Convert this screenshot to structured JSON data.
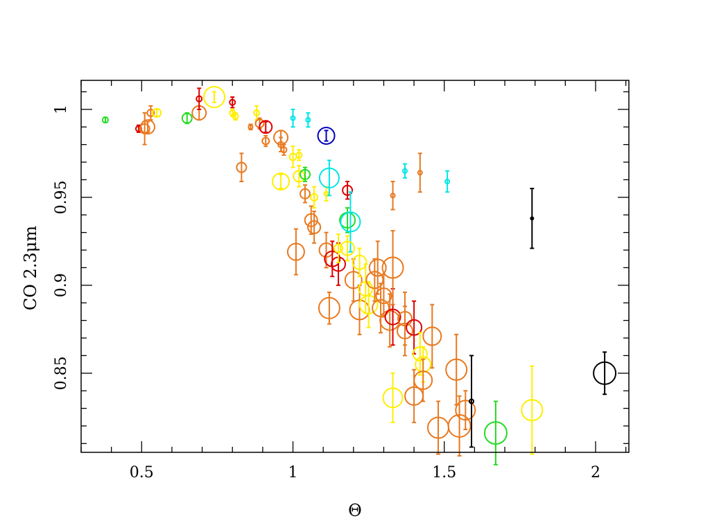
{
  "chart_data": {
    "type": "scatter",
    "title": "",
    "xlabel": "Θ",
    "ylabel": "CO 2.3μm",
    "xlim": [
      0.3,
      2.11
    ],
    "ylim": [
      0.805,
      1.0165
    ],
    "xticks": [
      {
        "value": 0.5,
        "label": "0.5"
      },
      {
        "value": 1,
        "label": "1"
      },
      {
        "value": 1.5,
        "label": "1.5"
      },
      {
        "value": 2,
        "label": "2"
      }
    ],
    "yticks": [
      {
        "value": 0.85,
        "label": "0.85"
      },
      {
        "value": 0.9,
        "label": "0.9"
      },
      {
        "value": 0.95,
        "label": "0.95"
      },
      {
        "value": 1,
        "label": "1"
      }
    ],
    "x_minor_step": 0.1,
    "y_minor_step": 0.01,
    "grid": false,
    "legend": "none",
    "colors": {
      "red": "#dd0000",
      "orange": "#e8781e",
      "yellow": "#ffee00",
      "green": "#22dd22",
      "cyan": "#00e5e5",
      "blue": "#0000bb",
      "black": "#000000"
    },
    "points": [
      {
        "x": 0.38,
        "y": 0.994,
        "err": 0.0015,
        "size": 4,
        "color": "green"
      },
      {
        "x": 0.49,
        "y": 0.989,
        "err": 0.002,
        "size": 4,
        "color": "red"
      },
      {
        "x": 0.51,
        "y": 0.989,
        "err": 0.009,
        "size": 7,
        "color": "orange"
      },
      {
        "x": 0.52,
        "y": 0.99,
        "err": 0.003,
        "size": 10,
        "color": "orange"
      },
      {
        "x": 0.53,
        "y": 0.998,
        "err": 0.004,
        "size": 5,
        "color": "orange"
      },
      {
        "x": 0.55,
        "y": 0.998,
        "err": 0.002,
        "size": 6,
        "color": "yellow"
      },
      {
        "x": 0.65,
        "y": 0.995,
        "err": 0.003,
        "size": 7,
        "color": "green"
      },
      {
        "x": 0.69,
        "y": 0.998,
        "err": 0.004,
        "size": 10,
        "color": "orange"
      },
      {
        "x": 0.69,
        "y": 1.006,
        "err": 0.006,
        "size": 4,
        "color": "red"
      },
      {
        "x": 0.74,
        "y": 1.007,
        "err": 0.003,
        "size": 15,
        "color": "yellow"
      },
      {
        "x": 0.8,
        "y": 1.004,
        "err": 0.003,
        "size": 4,
        "color": "red"
      },
      {
        "x": 0.8,
        "y": 0.998,
        "err": 0.002,
        "size": 4,
        "color": "yellow"
      },
      {
        "x": 0.81,
        "y": 0.996,
        "err": 0.002,
        "size": 4,
        "color": "yellow"
      },
      {
        "x": 0.83,
        "y": 0.967,
        "err": 0.008,
        "size": 7,
        "color": "orange"
      },
      {
        "x": 0.86,
        "y": 0.99,
        "err": 0.0015,
        "size": 3,
        "color": "orange"
      },
      {
        "x": 0.88,
        "y": 0.998,
        "err": 0.004,
        "size": 4,
        "color": "yellow"
      },
      {
        "x": 0.89,
        "y": 0.992,
        "err": 0.003,
        "size": 6,
        "color": "orange"
      },
      {
        "x": 0.91,
        "y": 0.99,
        "err": 0.003,
        "size": 9,
        "color": "red"
      },
      {
        "x": 0.91,
        "y": 0.982,
        "err": 0.003,
        "size": 5,
        "color": "orange"
      },
      {
        "x": 0.96,
        "y": 0.984,
        "err": 0.004,
        "size": 10,
        "color": "orange"
      },
      {
        "x": 0.96,
        "y": 0.98,
        "err": 0.004,
        "size": 4,
        "color": "orange"
      },
      {
        "x": 0.97,
        "y": 0.977,
        "err": 0.003,
        "size": 4,
        "color": "orange"
      },
      {
        "x": 1.0,
        "y": 0.973,
        "err": 0.006,
        "size": 5,
        "color": "yellow"
      },
      {
        "x": 1.0,
        "y": 0.995,
        "err": 0.005,
        "size": 3,
        "color": "cyan"
      },
      {
        "x": 1.02,
        "y": 0.974,
        "err": 0.003,
        "size": 4,
        "color": "yellow"
      },
      {
        "x": 1.02,
        "y": 0.962,
        "err": 0.006,
        "size": 8,
        "color": "yellow"
      },
      {
        "x": 1.04,
        "y": 0.963,
        "err": 0.004,
        "size": 7,
        "color": "green"
      },
      {
        "x": 1.04,
        "y": 0.952,
        "err": 0.005,
        "size": 7,
        "color": "orange"
      },
      {
        "x": 0.96,
        "y": 0.959,
        "err": 0.004,
        "size": 12,
        "color": "yellow"
      },
      {
        "x": 1.05,
        "y": 0.994,
        "err": 0.004,
        "size": 3,
        "color": "cyan"
      },
      {
        "x": 1.06,
        "y": 0.937,
        "err": 0.008,
        "size": 9,
        "color": "orange"
      },
      {
        "x": 1.07,
        "y": 0.933,
        "err": 0.009,
        "size": 9,
        "color": "orange"
      },
      {
        "x": 1.07,
        "y": 0.95,
        "err": 0.006,
        "size": 5,
        "color": "yellow"
      },
      {
        "x": 1.01,
        "y": 0.919,
        "err": 0.013,
        "size": 12,
        "color": "orange"
      },
      {
        "x": 1.11,
        "y": 0.985,
        "err": 0.003,
        "size": 12,
        "color": "blue"
      },
      {
        "x": 1.11,
        "y": 0.952,
        "err": 0.004,
        "size": 3,
        "color": "yellow"
      },
      {
        "x": 1.12,
        "y": 0.961,
        "err": 0.01,
        "size": 14,
        "color": "cyan"
      },
      {
        "x": 1.11,
        "y": 0.92,
        "err": 0.01,
        "size": 10,
        "color": "orange"
      },
      {
        "x": 1.12,
        "y": 0.887,
        "err": 0.009,
        "size": 15,
        "color": "orange"
      },
      {
        "x": 1.13,
        "y": 0.915,
        "err": 0.01,
        "size": 11,
        "color": "red"
      },
      {
        "x": 1.15,
        "y": 0.912,
        "err": 0.012,
        "size": 10,
        "color": "red"
      },
      {
        "x": 1.15,
        "y": 0.921,
        "err": 0.008,
        "size": 6,
        "color": "yellow"
      },
      {
        "x": 1.18,
        "y": 0.954,
        "err": 0.005,
        "size": 7,
        "color": "red"
      },
      {
        "x": 1.18,
        "y": 0.937,
        "err": 0.007,
        "size": 11,
        "color": "green"
      },
      {
        "x": 1.19,
        "y": 0.936,
        "err": 0.017,
        "size": 14,
        "color": "cyan"
      },
      {
        "x": 1.18,
        "y": 0.921,
        "err": 0.007,
        "size": 10,
        "color": "yellow"
      },
      {
        "x": 1.2,
        "y": 0.903,
        "err": 0.012,
        "size": 12,
        "color": "orange"
      },
      {
        "x": 1.22,
        "y": 0.913,
        "err": 0.008,
        "size": 10,
        "color": "yellow"
      },
      {
        "x": 1.22,
        "y": 0.886,
        "err": 0.014,
        "size": 14,
        "color": "orange"
      },
      {
        "x": 1.24,
        "y": 0.898,
        "err": 0.014,
        "size": 10,
        "color": "yellow"
      },
      {
        "x": 1.25,
        "y": 0.889,
        "err": 0.013,
        "size": 13,
        "color": "yellow"
      },
      {
        "x": 1.27,
        "y": 0.903,
        "err": 0.012,
        "size": 12,
        "color": "orange"
      },
      {
        "x": 1.28,
        "y": 0.91,
        "err": 0.015,
        "size": 12,
        "color": "orange"
      },
      {
        "x": 1.29,
        "y": 0.887,
        "err": 0.014,
        "size": 12,
        "color": "orange"
      },
      {
        "x": 1.3,
        "y": 0.894,
        "err": 0.012,
        "size": 11,
        "color": "orange"
      },
      {
        "x": 1.32,
        "y": 0.88,
        "err": 0.015,
        "size": 14,
        "color": "orange"
      },
      {
        "x": 1.33,
        "y": 0.882,
        "err": 0.016,
        "size": 11,
        "color": "red"
      },
      {
        "x": 1.33,
        "y": 0.91,
        "err": 0.021,
        "size": 15,
        "color": "orange"
      },
      {
        "x": 1.33,
        "y": 0.951,
        "err": 0.008,
        "size": 3,
        "color": "orange"
      },
      {
        "x": 1.37,
        "y": 0.965,
        "err": 0.004,
        "size": 3,
        "color": "cyan"
      },
      {
        "x": 1.37,
        "y": 0.881,
        "err": 0.015,
        "size": 10,
        "color": "orange"
      },
      {
        "x": 1.37,
        "y": 0.874,
        "err": 0.014,
        "size": 11,
        "color": "orange"
      },
      {
        "x": 1.4,
        "y": 0.876,
        "err": 0.015,
        "size": 11,
        "color": "red"
      },
      {
        "x": 1.42,
        "y": 0.964,
        "err": 0.011,
        "size": 3,
        "color": "orange"
      },
      {
        "x": 1.42,
        "y": 0.861,
        "err": 0.012,
        "size": 10,
        "color": "yellow"
      },
      {
        "x": 1.43,
        "y": 0.855,
        "err": 0.01,
        "size": 11,
        "color": "yellow"
      },
      {
        "x": 1.43,
        "y": 0.846,
        "err": 0.012,
        "size": 13,
        "color": "orange"
      },
      {
        "x": 1.4,
        "y": 0.837,
        "err": 0.015,
        "size": 13,
        "color": "orange"
      },
      {
        "x": 1.33,
        "y": 0.836,
        "err": 0.014,
        "size": 14,
        "color": "yellow"
      },
      {
        "x": 1.46,
        "y": 0.871,
        "err": 0.018,
        "size": 13,
        "color": "orange"
      },
      {
        "x": 1.48,
        "y": 0.819,
        "err": 0.015,
        "size": 15,
        "color": "orange"
      },
      {
        "x": 1.51,
        "y": 0.959,
        "err": 0.006,
        "size": 3,
        "color": "cyan"
      },
      {
        "x": 1.54,
        "y": 0.852,
        "err": 0.02,
        "size": 15,
        "color": "orange"
      },
      {
        "x": 1.55,
        "y": 0.82,
        "err": 0.017,
        "size": 16,
        "color": "orange"
      },
      {
        "x": 1.57,
        "y": 0.829,
        "err": 0.011,
        "size": 14,
        "color": "orange"
      },
      {
        "x": 1.59,
        "y": 0.834,
        "err": 0.026,
        "size": 3,
        "color": "black"
      },
      {
        "x": 1.67,
        "y": 0.816,
        "err": 0.018,
        "size": 16,
        "color": "green"
      },
      {
        "x": 1.79,
        "y": 0.829,
        "err": 0.025,
        "size": 15,
        "color": "yellow"
      },
      {
        "x": 1.79,
        "y": 0.938,
        "err": 0.017,
        "size": 2,
        "color": "black"
      },
      {
        "x": 2.03,
        "y": 0.85,
        "err": 0.012,
        "size": 16,
        "color": "black"
      }
    ]
  }
}
